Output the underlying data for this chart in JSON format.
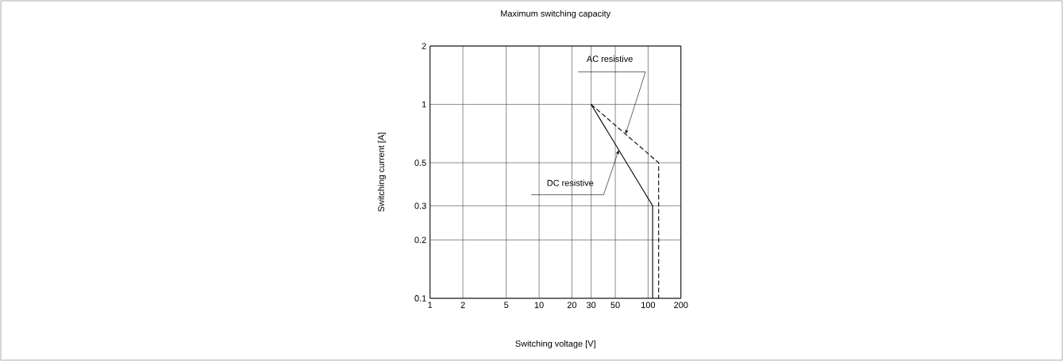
{
  "chart_data": {
    "type": "line",
    "title": "Maximum switching capacity",
    "xlabel": "Switching voltage [V]",
    "ylabel": "Switching current [A]",
    "log": "xy",
    "grid": true,
    "xlim": [
      1,
      200
    ],
    "xticks": [
      1,
      2,
      5,
      10,
      20,
      30,
      50,
      100,
      200
    ],
    "ylim": [
      0.1,
      2
    ],
    "yticks": [
      0.1,
      0.2,
      0.3,
      0.5,
      1,
      2
    ],
    "series": [
      {
        "name": "AC resistive",
        "color": "#000000",
        "line_style": "dashed",
        "x": [
          30,
          125,
          125
        ],
        "values": [
          1,
          0.5,
          0.1
        ]
      },
      {
        "name": "DC resistive",
        "color": "#000000",
        "line_style": "solid",
        "x": [
          30,
          110,
          110
        ],
        "values": [
          1,
          0.3,
          0.1
        ]
      }
    ]
  }
}
